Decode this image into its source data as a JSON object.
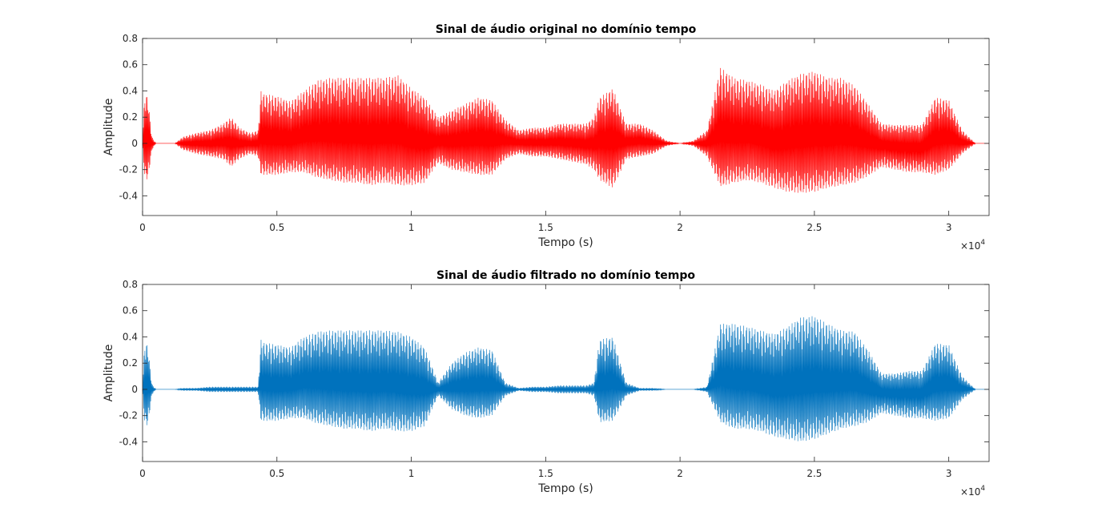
{
  "chart_data": [
    {
      "type": "line",
      "title": "Sinal de áudio original no domínio tempo",
      "xlabel": "Tempo (s)",
      "ylabel": "Amplitude",
      "xlim": [
        0,
        31500
      ],
      "ylim": [
        -0.55,
        0.8
      ],
      "x_ticks": [
        0,
        5000,
        10000,
        15000,
        20000,
        25000,
        30000
      ],
      "x_tick_labels": [
        "0",
        "0.5",
        "1",
        "1.5",
        "2",
        "2.5",
        "3"
      ],
      "x_exponent_base": "×10",
      "x_exponent_power": "4",
      "y_ticks": [
        -0.4,
        -0.2,
        0,
        0.2,
        0.4,
        0.6,
        0.8
      ],
      "y_tick_labels": [
        "-0.4",
        "-0.2",
        "0",
        "0.2",
        "0.4",
        "0.6",
        "0.8"
      ],
      "grid": false,
      "color": "#ff0000",
      "envelope": {
        "x": [
          0,
          80,
          200,
          350,
          500,
          1200,
          1500,
          2000,
          2500,
          3000,
          3300,
          3600,
          4000,
          4300,
          4400,
          4500,
          5000,
          5500,
          6000,
          6500,
          7000,
          7500,
          8000,
          8500,
          9000,
          9500,
          10000,
          10500,
          11000,
          11500,
          12000,
          12500,
          13000,
          13500,
          14000,
          14500,
          15000,
          15500,
          16000,
          16500,
          16800,
          17000,
          17500,
          18000,
          18500,
          19000,
          19500,
          20000,
          20500,
          21000,
          21500,
          22000,
          22500,
          23000,
          23500,
          24000,
          24500,
          25000,
          25500,
          26000,
          26500,
          27000,
          27500,
          28000,
          28500,
          29000,
          29500,
          30000,
          30500,
          31000,
          31500
        ],
        "upper": [
          0.0,
          0.38,
          0.36,
          0.05,
          0.0,
          0.0,
          0.05,
          0.08,
          0.1,
          0.15,
          0.2,
          0.12,
          0.08,
          0.1,
          0.4,
          0.38,
          0.36,
          0.32,
          0.4,
          0.48,
          0.5,
          0.5,
          0.5,
          0.5,
          0.5,
          0.52,
          0.42,
          0.35,
          0.2,
          0.25,
          0.3,
          0.35,
          0.33,
          0.18,
          0.1,
          0.12,
          0.12,
          0.15,
          0.15,
          0.15,
          0.2,
          0.35,
          0.42,
          0.15,
          0.15,
          0.1,
          0.02,
          0.0,
          0.02,
          0.1,
          0.58,
          0.5,
          0.48,
          0.45,
          0.4,
          0.48,
          0.53,
          0.55,
          0.5,
          0.5,
          0.44,
          0.3,
          0.15,
          0.14,
          0.14,
          0.14,
          0.35,
          0.33,
          0.1,
          0.0,
          0.0
        ],
        "lower": [
          0.0,
          -0.28,
          -0.27,
          -0.05,
          0.0,
          0.0,
          -0.05,
          -0.08,
          -0.1,
          -0.12,
          -0.18,
          -0.12,
          -0.08,
          -0.1,
          -0.24,
          -0.24,
          -0.24,
          -0.22,
          -0.22,
          -0.26,
          -0.28,
          -0.3,
          -0.3,
          -0.32,
          -0.3,
          -0.32,
          -0.32,
          -0.3,
          -0.15,
          -0.2,
          -0.22,
          -0.24,
          -0.24,
          -0.12,
          -0.08,
          -0.1,
          -0.1,
          -0.12,
          -0.14,
          -0.16,
          -0.2,
          -0.28,
          -0.34,
          -0.12,
          -0.1,
          -0.08,
          -0.02,
          0.0,
          -0.02,
          -0.1,
          -0.33,
          -0.3,
          -0.28,
          -0.3,
          -0.34,
          -0.37,
          -0.38,
          -0.37,
          -0.34,
          -0.32,
          -0.3,
          -0.25,
          -0.18,
          -0.2,
          -0.22,
          -0.22,
          -0.24,
          -0.2,
          -0.08,
          0.0,
          0.0
        ]
      }
    },
    {
      "type": "line",
      "title": "Sinal de áudio filtrado no domínio tempo",
      "xlabel": "Tempo (s)",
      "ylabel": "Amplitude",
      "xlim": [
        0,
        31500
      ],
      "ylim": [
        -0.55,
        0.8
      ],
      "x_ticks": [
        0,
        5000,
        10000,
        15000,
        20000,
        25000,
        30000
      ],
      "x_tick_labels": [
        "0",
        "0.5",
        "1",
        "1.5",
        "2",
        "2.5",
        "3"
      ],
      "x_exponent_base": "×10",
      "x_exponent_power": "4",
      "y_ticks": [
        -0.4,
        -0.2,
        0,
        0.2,
        0.4,
        0.6,
        0.8
      ],
      "y_tick_labels": [
        "-0.4",
        "-0.2",
        "0",
        "0.2",
        "0.4",
        "0.6",
        "0.8"
      ],
      "grid": false,
      "color": "#0072bd",
      "envelope": {
        "x": [
          0,
          80,
          200,
          350,
          500,
          1200,
          1500,
          2000,
          2500,
          3000,
          3300,
          3600,
          4000,
          4300,
          4400,
          4500,
          5000,
          5500,
          6000,
          6500,
          7000,
          7500,
          8000,
          8500,
          9000,
          9500,
          10000,
          10500,
          11000,
          11500,
          12000,
          12500,
          13000,
          13500,
          14000,
          14500,
          15000,
          15500,
          16000,
          16500,
          16800,
          17000,
          17500,
          18000,
          18500,
          19000,
          19500,
          20000,
          20500,
          21000,
          21500,
          22000,
          22500,
          23000,
          23500,
          24000,
          24500,
          25000,
          25500,
          26000,
          26500,
          27000,
          27500,
          28000,
          28500,
          29000,
          29500,
          30000,
          30500,
          31000,
          31500
        ],
        "upper": [
          0.0,
          0.36,
          0.34,
          0.04,
          0.0,
          0.0,
          0.01,
          0.01,
          0.02,
          0.02,
          0.02,
          0.02,
          0.02,
          0.02,
          0.38,
          0.36,
          0.34,
          0.32,
          0.4,
          0.44,
          0.45,
          0.45,
          0.45,
          0.45,
          0.45,
          0.44,
          0.4,
          0.32,
          0.05,
          0.2,
          0.28,
          0.32,
          0.3,
          0.05,
          0.01,
          0.02,
          0.02,
          0.03,
          0.03,
          0.03,
          0.05,
          0.38,
          0.4,
          0.05,
          0.01,
          0.01,
          0.0,
          0.0,
          0.0,
          0.02,
          0.5,
          0.5,
          0.48,
          0.45,
          0.42,
          0.48,
          0.55,
          0.56,
          0.5,
          0.45,
          0.44,
          0.3,
          0.12,
          0.12,
          0.14,
          0.14,
          0.35,
          0.34,
          0.1,
          0.0,
          0.0
        ],
        "lower": [
          0.0,
          -0.28,
          -0.27,
          -0.04,
          0.0,
          0.0,
          -0.01,
          -0.01,
          -0.02,
          -0.02,
          -0.02,
          -0.02,
          -0.02,
          -0.02,
          -0.24,
          -0.24,
          -0.24,
          -0.22,
          -0.22,
          -0.26,
          -0.28,
          -0.3,
          -0.3,
          -0.32,
          -0.3,
          -0.32,
          -0.32,
          -0.28,
          -0.05,
          -0.15,
          -0.2,
          -0.22,
          -0.2,
          -0.05,
          -0.01,
          -0.02,
          -0.02,
          -0.03,
          -0.03,
          -0.03,
          -0.05,
          -0.25,
          -0.24,
          -0.05,
          -0.01,
          -0.01,
          0.0,
          0.0,
          0.0,
          -0.02,
          -0.25,
          -0.3,
          -0.3,
          -0.32,
          -0.36,
          -0.38,
          -0.4,
          -0.38,
          -0.34,
          -0.3,
          -0.28,
          -0.25,
          -0.18,
          -0.2,
          -0.22,
          -0.22,
          -0.24,
          -0.22,
          -0.08,
          0.0,
          0.0
        ]
      }
    }
  ]
}
